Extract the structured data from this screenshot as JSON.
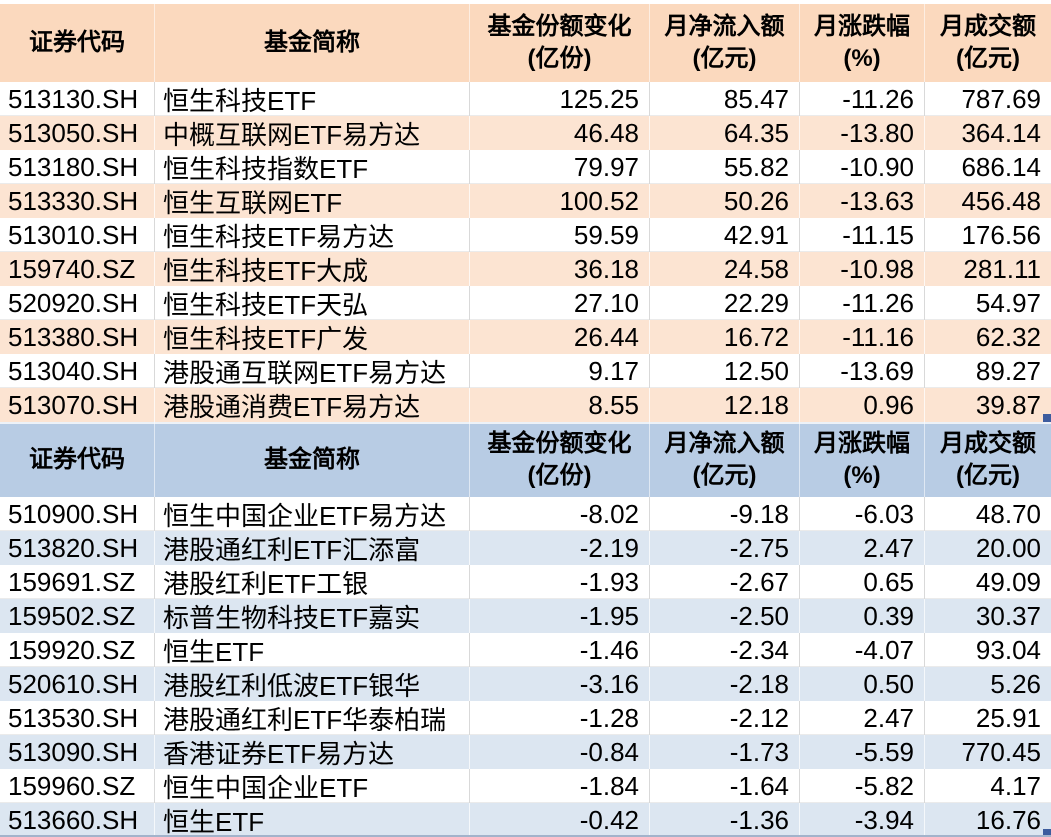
{
  "colors": {
    "grid_line": "#D9D9D9",
    "fill_handle": "#3D5C9E",
    "bottom_edge": "#A3B3CB"
  },
  "tables": [
    {
      "id": "inflow",
      "theme": {
        "header_bg": "#FBD9BE",
        "stripe_bg": "#FCE4D2"
      },
      "columns": [
        {
          "key": "code",
          "label": "证券代码",
          "sub": ""
        },
        {
          "key": "name",
          "label": "基金简称",
          "sub": ""
        },
        {
          "key": "share-change",
          "label": "基金份额变化",
          "sub": "(亿份)"
        },
        {
          "key": "net-inflow",
          "label": "月净流入额",
          "sub": "(亿元)"
        },
        {
          "key": "monthly-chg",
          "label": "月涨跌幅",
          "sub": "(%)"
        },
        {
          "key": "turnover",
          "label": "月成交额",
          "sub": "(亿元)"
        }
      ],
      "rows": [
        [
          "513130.SH",
          "恒生科技ETF",
          "125.25",
          "85.47",
          "-11.26",
          "787.69"
        ],
        [
          "513050.SH",
          "中概互联网ETF易方达",
          "46.48",
          "64.35",
          "-13.80",
          "364.14"
        ],
        [
          "513180.SH",
          "恒生科技指数ETF",
          "79.97",
          "55.82",
          "-10.90",
          "686.14"
        ],
        [
          "513330.SH",
          "恒生互联网ETF",
          "100.52",
          "50.26",
          "-13.63",
          "456.48"
        ],
        [
          "513010.SH",
          "恒生科技ETF易方达",
          "59.59",
          "42.91",
          "-11.15",
          "176.56"
        ],
        [
          "159740.SZ",
          "恒生科技ETF大成",
          "36.18",
          "24.58",
          "-10.98",
          "281.11"
        ],
        [
          "520920.SH",
          "恒生科技ETF天弘",
          "27.10",
          "22.29",
          "-11.26",
          "54.97"
        ],
        [
          "513380.SH",
          "恒生科技ETF广发",
          "26.44",
          "16.72",
          "-11.16",
          "62.32"
        ],
        [
          "513040.SH",
          "港股通互联网ETF易方达",
          "9.17",
          "12.50",
          "-13.69",
          "89.27"
        ],
        [
          "513070.SH",
          "港股通消费ETF易方达",
          "8.55",
          "12.18",
          "0.96",
          "39.87"
        ]
      ]
    },
    {
      "id": "outflow",
      "theme": {
        "header_bg": "#B8CCE4",
        "stripe_bg": "#DCE6F1"
      },
      "columns": [
        {
          "key": "code",
          "label": "证券代码",
          "sub": ""
        },
        {
          "key": "name",
          "label": "基金简称",
          "sub": ""
        },
        {
          "key": "share-change",
          "label": "基金份额变化",
          "sub": "(亿份)"
        },
        {
          "key": "net-inflow",
          "label": "月净流入额",
          "sub": "(亿元)"
        },
        {
          "key": "monthly-chg",
          "label": "月涨跌幅",
          "sub": "(%)"
        },
        {
          "key": "turnover",
          "label": "月成交额",
          "sub": "(亿元)"
        }
      ],
      "rows": [
        [
          "510900.SH",
          "恒生中国企业ETF易方达",
          "-8.02",
          "-9.18",
          "-6.03",
          "48.70"
        ],
        [
          "513820.SH",
          "港股通红利ETF汇添富",
          "-2.19",
          "-2.75",
          "2.47",
          "20.00"
        ],
        [
          "159691.SZ",
          "港股红利ETF工银",
          "-1.93",
          "-2.67",
          "0.65",
          "49.09"
        ],
        [
          "159502.SZ",
          "标普生物科技ETF嘉实",
          "-1.95",
          "-2.50",
          "0.39",
          "30.37"
        ],
        [
          "159920.SZ",
          "恒生ETF",
          "-1.46",
          "-2.34",
          "-4.07",
          "93.04"
        ],
        [
          "520610.SH",
          "港股红利低波ETF银华",
          "-3.16",
          "-2.18",
          "0.50",
          "5.26"
        ],
        [
          "513530.SH",
          "港股通红利ETF华泰柏瑞",
          "-1.28",
          "-2.12",
          "2.47",
          "25.91"
        ],
        [
          "513090.SH",
          "香港证券ETF易方达",
          "-0.84",
          "-1.73",
          "-5.59",
          "770.45"
        ],
        [
          "159960.SZ",
          "恒生中国企业ETF",
          "-1.84",
          "-1.64",
          "-5.82",
          "4.17"
        ],
        [
          "513660.SH",
          "恒生ETF",
          "-0.42",
          "-1.36",
          "-3.94",
          "16.76"
        ]
      ]
    }
  ]
}
